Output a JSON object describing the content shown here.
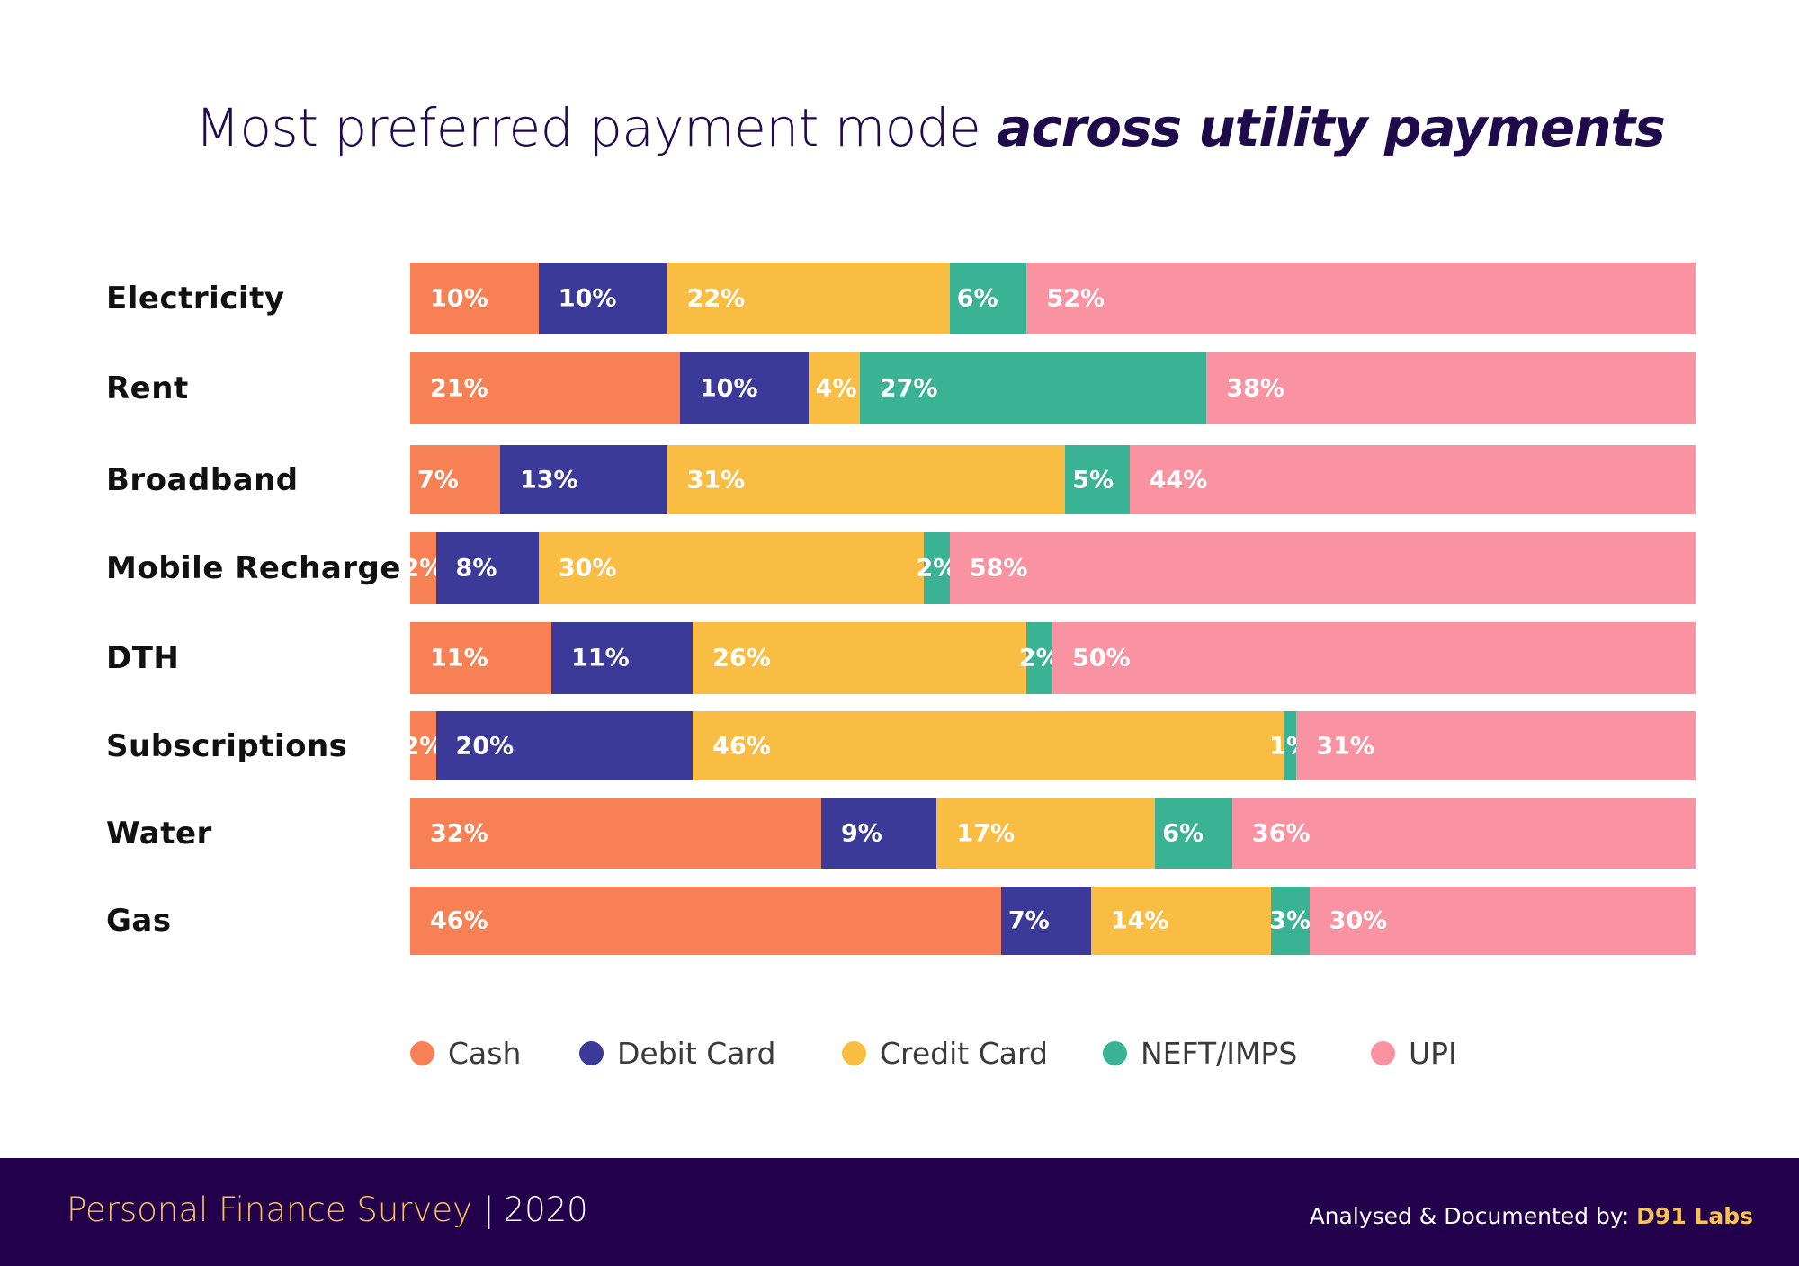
{
  "title": {
    "main": "Most preferred payment mode ",
    "emphasis": "across utility payments"
  },
  "chart_data": {
    "type": "bar",
    "orientation": "horizontal",
    "stacked": true,
    "categories": [
      "Electricity",
      "Rent",
      "Broadband",
      "Mobile Recharge",
      "DTH",
      "Subscriptions",
      "Water",
      "Gas"
    ],
    "series": [
      {
        "name": "Cash",
        "color": "#f78154",
        "values": [
          10,
          21,
          7,
          2,
          11,
          2,
          32,
          46
        ]
      },
      {
        "name": "Debit Card",
        "color": "#3c3a98",
        "values": [
          10,
          10,
          13,
          8,
          11,
          20,
          9,
          7
        ]
      },
      {
        "name": "Credit Card",
        "color": "#f8bd42",
        "values": [
          22,
          4,
          31,
          30,
          26,
          46,
          17,
          14
        ]
      },
      {
        "name": "NEFT/IMPS",
        "color": "#3ab394",
        "values": [
          6,
          27,
          5,
          2,
          2,
          1,
          6,
          3
        ]
      },
      {
        "name": "UPI",
        "color": "#f992a1",
        "values": [
          52,
          38,
          44,
          58,
          50,
          31,
          36,
          30
        ]
      }
    ],
    "value_suffix": "%",
    "legend_position": "bottom",
    "grid": false
  },
  "footer": {
    "brand": "Personal Finance Survey",
    "separator": "|",
    "year": "2020",
    "credit_label": "Analysed & Documented by: ",
    "credit_org": "D91 Labs"
  }
}
